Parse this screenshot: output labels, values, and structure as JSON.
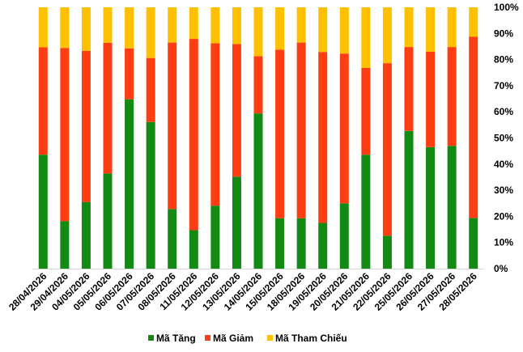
{
  "chart_data": {
    "type": "bar",
    "stacked": "percent",
    "title": "",
    "xlabel": "",
    "ylabel": "",
    "ylim": [
      0,
      100
    ],
    "y_ticks": [
      "0%",
      "10%",
      "20%",
      "30%",
      "40%",
      "50%",
      "60%",
      "70%",
      "80%",
      "90%",
      "100%"
    ],
    "grid": false,
    "legend_position": "bottom",
    "categories": [
      "28/04/2026",
      "29/04/2026",
      "04/05/2026",
      "05/05/2026",
      "06/05/2026",
      "07/05/2026",
      "08/05/2026",
      "11/05/2026",
      "12/05/2026",
      "13/05/2026",
      "14/05/2026",
      "15/05/2026",
      "18/05/2026",
      "19/05/2026",
      "20/05/2026",
      "21/05/2026",
      "22/05/2026",
      "25/05/2026",
      "26/05/2026",
      "27/05/2026",
      "28/05/2026"
    ],
    "series": [
      {
        "name": "Mã Tăng",
        "color": "#138a13",
        "values": [
          43.6,
          18.2,
          25.5,
          36.4,
          64.8,
          56.1,
          22.8,
          14.7,
          24.1,
          35.2,
          59.4,
          19.3,
          19.3,
          17.5,
          25.0,
          43.6,
          12.6,
          52.7,
          46.5,
          47.0,
          19.4
        ]
      },
      {
        "name": "Mã Giảm",
        "color": "#ff3d12",
        "values": [
          41.1,
          66.2,
          57.8,
          50.0,
          19.5,
          24.5,
          63.7,
          73.2,
          62.1,
          50.7,
          21.9,
          64.5,
          67.2,
          65.4,
          57.3,
          33.2,
          66.0,
          32.1,
          36.5,
          37.8,
          69.3
        ]
      },
      {
        "name": "Mã Tham Chiếu",
        "color": "#ffc000",
        "values": [
          15.3,
          15.6,
          16.7,
          13.6,
          15.7,
          19.4,
          13.5,
          12.1,
          13.8,
          14.1,
          18.7,
          16.2,
          13.5,
          17.1,
          17.7,
          23.2,
          21.4,
          15.2,
          17.0,
          15.2,
          11.3
        ]
      }
    ]
  }
}
